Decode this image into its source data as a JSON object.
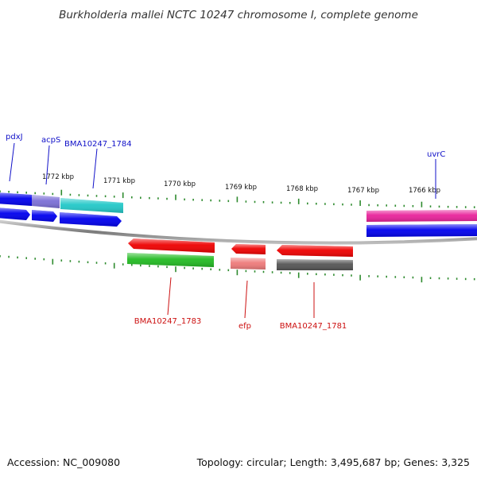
{
  "title": "Burkholderia mallei NCTC 10247 chromosome I, complete genome",
  "footer": {
    "accession": "Accession: NC_009080",
    "summary": "Topology: circular; Length: 3,495,687 bp; Genes: 3,325"
  },
  "colors": {
    "backbone": "#888888",
    "tick": "#2e8b2e",
    "forward_label": "#1010c8",
    "reverse_label": "#cc1010"
  },
  "scale": {
    "unit": "kbp",
    "labels": [
      "1772 kbp",
      "1771 kbp",
      "1770 kbp",
      "1769 kbp",
      "1768 kbp",
      "1767 kbp",
      "1766 kbp"
    ]
  },
  "features": {
    "forward": [
      {
        "name": "pdxJ",
        "label": "pdxJ",
        "feature_color": "#0000ee",
        "cds_color": "#0000ee"
      },
      {
        "name": "acpS",
        "label": "acpS",
        "feature_color": "#7b6fd6",
        "cds_color": "#0000ee"
      },
      {
        "name": "BMA10247_1784",
        "label": "BMA10247_1784",
        "feature_color": "#22c8c8",
        "cds_color": "#0000ee"
      },
      {
        "name": "uvrC",
        "label": "uvrC",
        "feature_color": "#e8239a",
        "cds_color": "#0000ee"
      }
    ],
    "reverse": [
      {
        "name": "BMA10247_1783",
        "label": "BMA10247_1783",
        "feature_color": "#ee0000",
        "cds_color": "#22bb22"
      },
      {
        "name": "efp",
        "label": "efp",
        "feature_color": "#ee0000",
        "cds_color": "#ee7a7a"
      },
      {
        "name": "BMA10247_1781",
        "label": "BMA10247_1781",
        "feature_color": "#ee0000",
        "cds_color": "#555555"
      }
    ]
  }
}
